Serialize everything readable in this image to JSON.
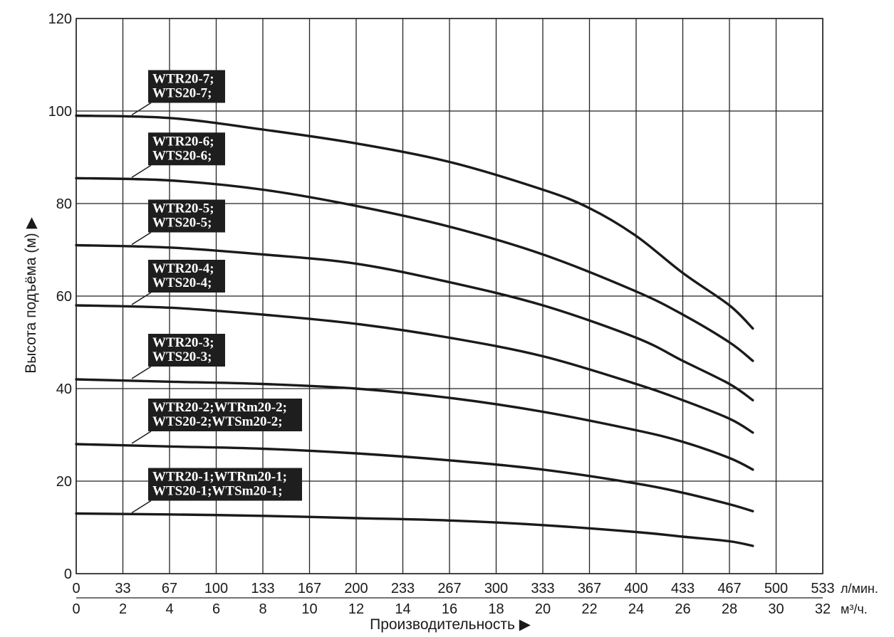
{
  "chart_data": {
    "type": "line",
    "ylabel": "Высота подъёма (м) ▶",
    "xlabel": "Производительность ▶",
    "ylim": [
      0,
      120
    ],
    "y_ticks": [
      "0",
      "20",
      "40",
      "60",
      "80",
      "100",
      "120"
    ],
    "x_units_primary": "л/мин.",
    "x_units_secondary": "м³/ч.",
    "x_ticks_primary": [
      "0",
      "33",
      "67",
      "100",
      "133",
      "167",
      "200",
      "233",
      "267",
      "300",
      "333",
      "367",
      "400",
      "433",
      "467",
      "500",
      "533"
    ],
    "x_ticks_secondary": [
      "0",
      "2",
      "4",
      "6",
      "8",
      "10",
      "12",
      "14",
      "16",
      "18",
      "20",
      "22",
      "24",
      "26",
      "28",
      "30",
      "32"
    ],
    "xlim_m3h": [
      0,
      32
    ],
    "grid": true,
    "series": [
      {
        "name_lines": [
          "WTR20-7;",
          "WTS20-7;"
        ],
        "x": [
          0,
          4,
          8,
          12,
          16,
          20,
          22,
          24,
          26,
          28,
          29
        ],
        "y": [
          99,
          98.5,
          96,
          93,
          89,
          83,
          79,
          73,
          65,
          58,
          53
        ]
      },
      {
        "name_lines": [
          "WTR20-6;",
          "WTS20-6;"
        ],
        "x": [
          0,
          4,
          8,
          12,
          16,
          20,
          24,
          26,
          28,
          29
        ],
        "y": [
          85.5,
          85,
          83,
          79.5,
          75,
          69,
          61,
          56,
          50,
          46
        ]
      },
      {
        "name_lines": [
          "WTR20-5;",
          "WTS20-5;"
        ],
        "x": [
          0,
          4,
          8,
          12,
          16,
          20,
          24,
          26,
          28,
          29
        ],
        "y": [
          71,
          70.5,
          69,
          67,
          63,
          58,
          51,
          46,
          41,
          37.5
        ]
      },
      {
        "name_lines": [
          "WTR20-4;",
          "WTS20-4;"
        ],
        "x": [
          0,
          4,
          8,
          12,
          16,
          20,
          24,
          26,
          28,
          29
        ],
        "y": [
          58,
          57.5,
          56,
          54,
          51,
          47,
          41,
          37.5,
          33.5,
          30.5
        ]
      },
      {
        "name_lines": [
          "WTR20-3;",
          "WTS20-3;"
        ],
        "x": [
          0,
          4,
          8,
          12,
          16,
          20,
          24,
          26,
          28,
          29
        ],
        "y": [
          42,
          41.5,
          41,
          40,
          38,
          35,
          31,
          28.5,
          25,
          22.5
        ]
      },
      {
        "name_lines": [
          "WTR20-2;WTRm20-2;",
          "WTS20-2;WTSm20-2;"
        ],
        "x": [
          0,
          4,
          8,
          12,
          16,
          20,
          24,
          26,
          28,
          29
        ],
        "y": [
          28,
          27.5,
          27,
          26,
          24.5,
          22.5,
          19.5,
          17.5,
          15,
          13.5
        ]
      },
      {
        "name_lines": [
          "WTR20-1;WTRm20-1;",
          "WTS20-1;WTSm20-1;"
        ],
        "x": [
          0,
          4,
          8,
          12,
          16,
          20,
          24,
          26,
          28,
          29
        ],
        "y": [
          13,
          12.8,
          12.5,
          12,
          11.5,
          10.5,
          9,
          8,
          7,
          6
        ]
      }
    ]
  }
}
